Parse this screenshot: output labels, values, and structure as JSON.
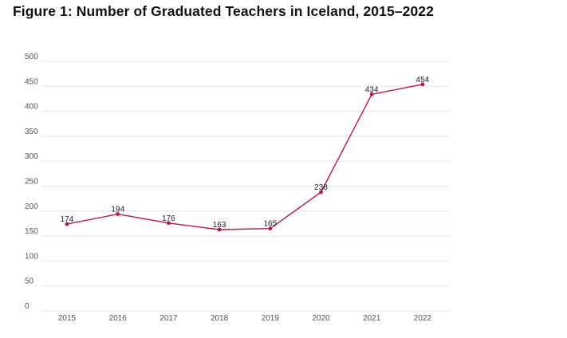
{
  "title": "Figure 1: Number of Graduated Teachers in Iceland, 2015–2022",
  "colors": {
    "line": "#c0144b",
    "grid": "#e4e4e4",
    "axis_text": "#555555"
  },
  "chart_data": {
    "type": "line",
    "title": "Figure 1: Number of Graduated Teachers in Iceland, 2015–2022",
    "xlabel": "",
    "ylabel": "",
    "categories": [
      "2015",
      "2016",
      "2017",
      "2018",
      "2019",
      "2020",
      "2021",
      "2022"
    ],
    "series": [
      {
        "values": [
          174,
          194,
          176,
          163,
          165,
          238,
          434,
          454
        ]
      }
    ],
    "ylim": [
      0,
      500
    ],
    "yticks": [
      0,
      50,
      100,
      150,
      200,
      250,
      300,
      350,
      400,
      450,
      500
    ],
    "grid": true,
    "data_labels": true
  }
}
